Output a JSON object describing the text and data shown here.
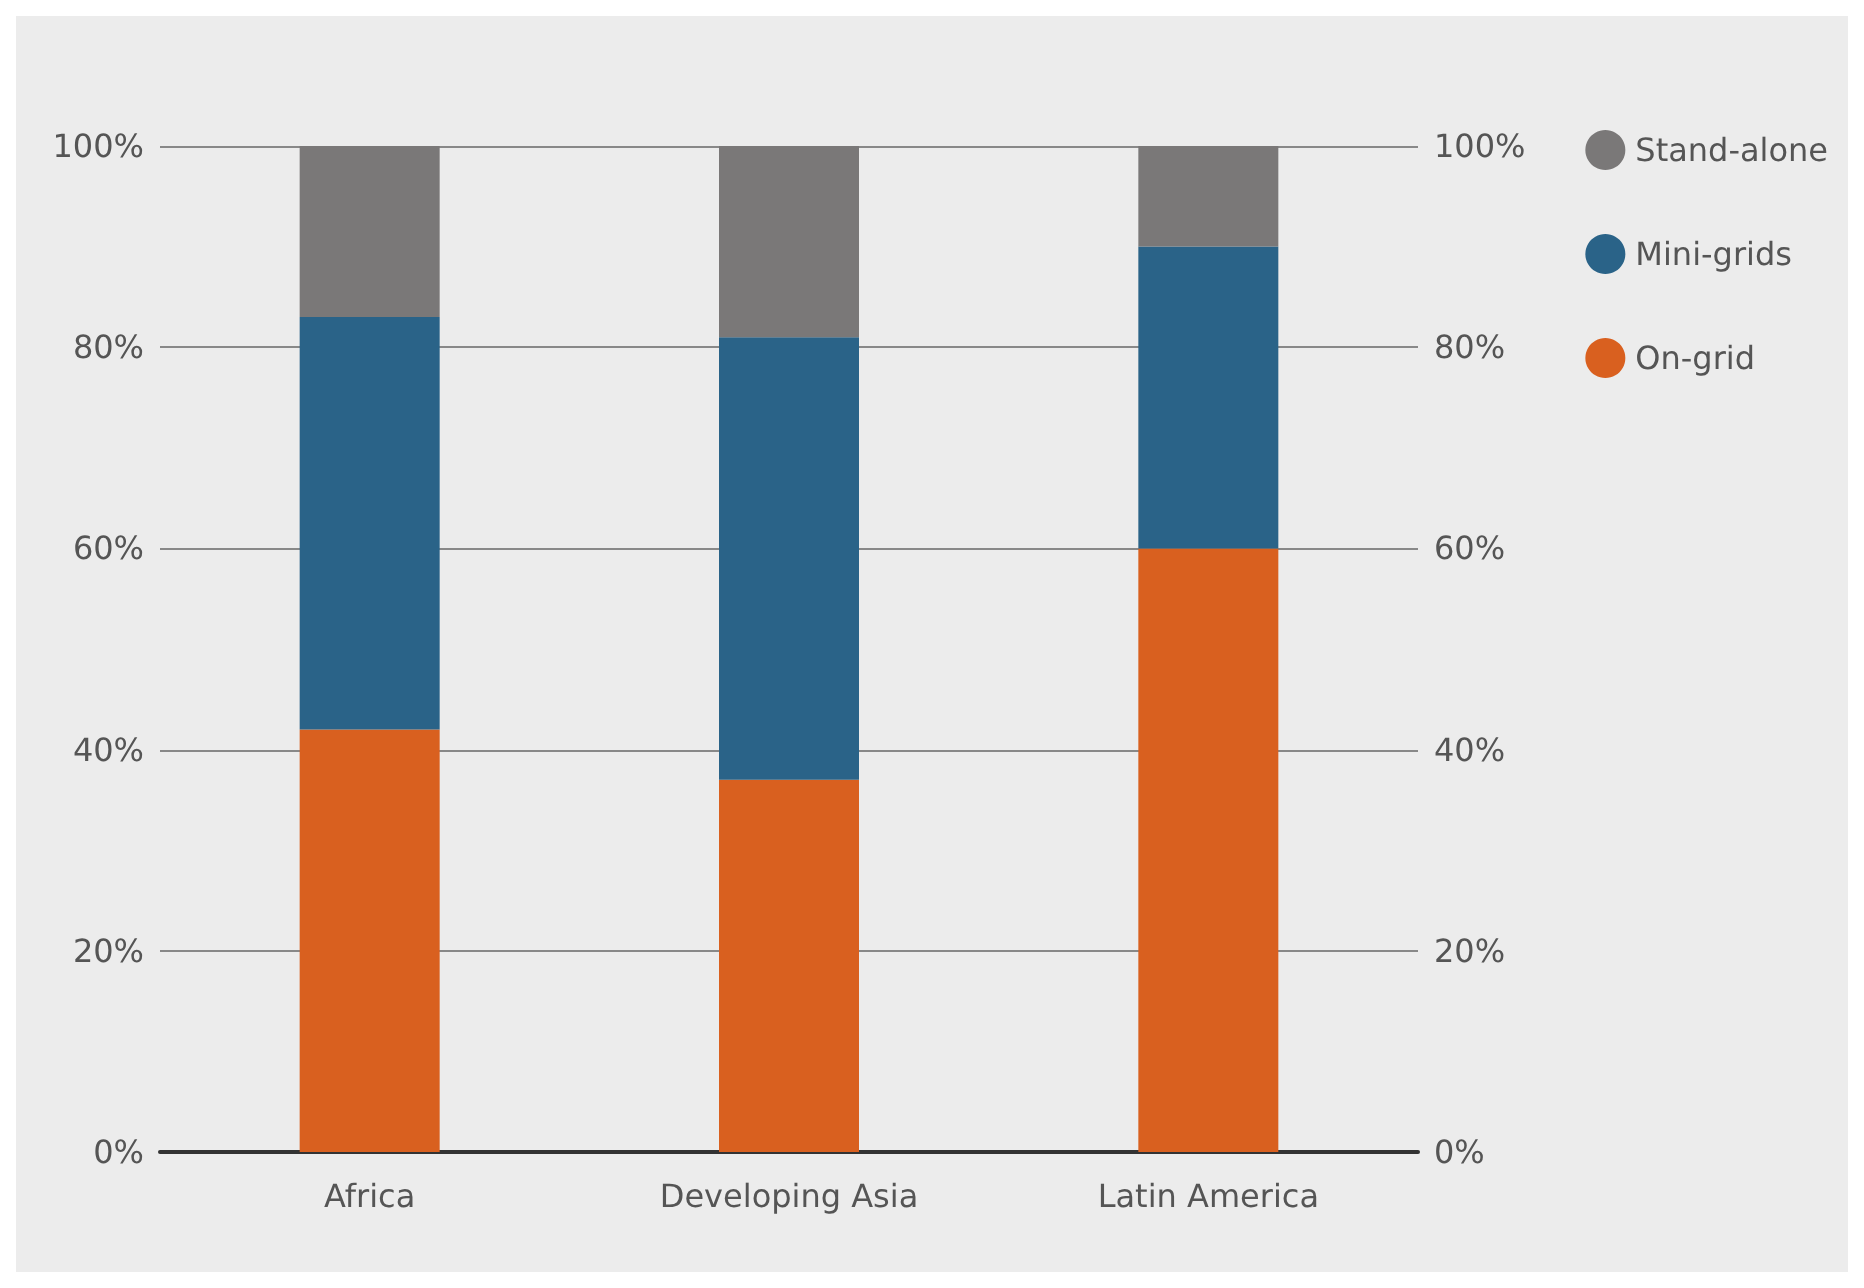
{
  "chart_data": {
    "type": "bar",
    "stacked": true,
    "categories": [
      "Africa",
      "Developing Asia",
      "Latin America"
    ],
    "series": [
      {
        "name": "On-grid",
        "color": "#d9601f",
        "values": [
          42,
          37,
          60
        ]
      },
      {
        "name": "Mini-grids",
        "color": "#2a6388",
        "values": [
          41,
          44,
          30
        ]
      },
      {
        "name": "Stand-alone",
        "color": "#7a7878",
        "values": [
          17,
          19,
          10
        ]
      }
    ],
    "ylim": [
      0,
      100
    ],
    "yticks": [
      {
        "value": 0,
        "label": "0%"
      },
      {
        "value": 20,
        "label": "20%"
      },
      {
        "value": 40,
        "label": "40%"
      },
      {
        "value": 60,
        "label": "60%"
      },
      {
        "value": 80,
        "label": "80%"
      },
      {
        "value": 100,
        "label": "100%"
      }
    ],
    "y2lim": [
      0,
      100
    ],
    "y2ticks": [
      {
        "value": 0,
        "label": "0%"
      },
      {
        "value": 20,
        "label": "20%"
      },
      {
        "value": 40,
        "label": "40%"
      },
      {
        "value": 60,
        "label": "60%"
      },
      {
        "value": 80,
        "label": "80%"
      },
      {
        "value": 100,
        "label": "100%"
      }
    ],
    "grid": "y",
    "legend": "top right"
  }
}
